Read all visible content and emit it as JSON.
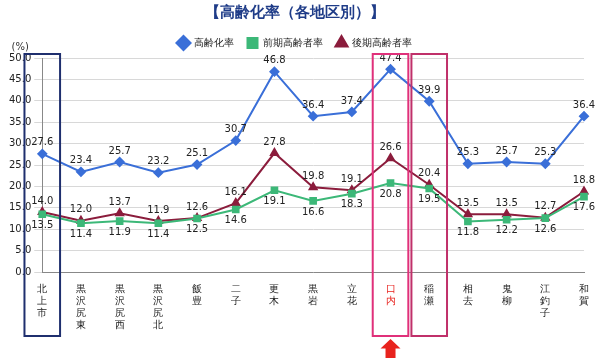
{
  "chart_data": {
    "type": "line",
    "title": "【高齢化率（各地区別）】",
    "y_label": "(%)",
    "categories": [
      "北上市",
      "黒沢尻東",
      "黒沢尻西",
      "黒沢尻北",
      "飯豊",
      "二子",
      "更木",
      "黒岩",
      "立花",
      "口内",
      "稲瀬",
      "相去",
      "鬼柳",
      "江釣子",
      "和賀"
    ],
    "series": [
      {
        "name": "高齢化率",
        "color": "#3a6fd8",
        "marker": "diamond",
        "values": [
          27.6,
          23.4,
          25.7,
          23.2,
          25.1,
          30.7,
          46.8,
          36.4,
          37.4,
          47.4,
          39.9,
          25.3,
          25.7,
          25.3,
          36.4
        ],
        "value_labels": [
          "27.6",
          "23.4",
          "25.7",
          "23.2",
          "25.1",
          "30.7",
          "46.8",
          "36.4",
          "37.4",
          "47.4",
          "39.9",
          "25.3",
          "25.7",
          "25.3",
          "36.4"
        ]
      },
      {
        "name": "前期高齢者率",
        "color": "#3cb878",
        "marker": "square",
        "values": [
          13.5,
          11.4,
          11.9,
          11.4,
          12.5,
          14.6,
          19.1,
          16.6,
          18.3,
          20.8,
          19.5,
          11.8,
          12.2,
          12.6,
          17.6
        ],
        "value_labels": [
          "13.5",
          "11.4",
          "11.9",
          "11.4",
          "12.5",
          "14.6",
          "19.1",
          "16.6",
          "18.3",
          "20.8",
          "19.5",
          "11.8",
          "12.2",
          "12.6",
          "17.6"
        ]
      },
      {
        "name": "後期高齢者率",
        "color": "#8b1c3c",
        "marker": "triangle",
        "values": [
          14.0,
          12.0,
          13.7,
          11.9,
          12.6,
          16.1,
          27.8,
          19.8,
          19.1,
          26.6,
          20.4,
          13.5,
          13.5,
          12.7,
          18.8
        ],
        "value_labels": [
          "14.0",
          "12.0",
          "13.7",
          "11.9",
          "12.6",
          "16.1",
          "27.8",
          "19.8",
          "19.1",
          "26.6",
          "20.4",
          "13.5",
          "13.5",
          "12.7",
          "18.8"
        ]
      }
    ],
    "ylim": [
      0,
      50
    ],
    "yticks": [
      {
        "value": 0,
        "label": "0.0"
      },
      {
        "value": 5,
        "label": "5.0"
      },
      {
        "value": 10,
        "label": "10.0"
      },
      {
        "value": 15,
        "label": "15.0"
      },
      {
        "value": 20,
        "label": "20.0"
      },
      {
        "value": 25,
        "label": "25.0"
      },
      {
        "value": 30,
        "label": "30.0"
      },
      {
        "value": 35,
        "label": "35.0"
      },
      {
        "value": 40,
        "label": "40.0"
      },
      {
        "value": 45,
        "label": "45.0"
      },
      {
        "value": 50,
        "label": "50.0"
      }
    ],
    "grid": true,
    "legend": "top",
    "data_labels": true
  }
}
